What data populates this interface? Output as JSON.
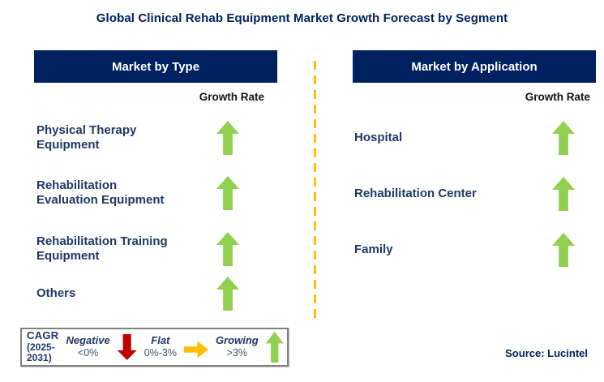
{
  "title": "Global Clinical Rehab Equipment Market Growth Forecast by Segment",
  "source": "Source: Lucintel",
  "colors": {
    "header_navy": "#002060",
    "segment_text": "#1F3864",
    "growing_green": "#92D050",
    "negative_red": "#C00000",
    "flat_amber": "#FFC000",
    "divider_amber": "#FFC000"
  },
  "panels": [
    {
      "header": "Market by Type",
      "growth_rate_label": "Growth Rate",
      "items": [
        {
          "label": "Physical Therapy\nEquipment",
          "trend": "growing",
          "icon": "up-arrow"
        },
        {
          "label": "Rehabilitation\nEvaluation Equipment",
          "trend": "growing",
          "icon": "up-arrow"
        },
        {
          "label": "Rehabilitation Training\nEquipment",
          "trend": "growing",
          "icon": "up-arrow"
        },
        {
          "label": "Others",
          "trend": "growing",
          "icon": "up-arrow"
        }
      ]
    },
    {
      "header": "Market by Application",
      "growth_rate_label": "Growth Rate",
      "items": [
        {
          "label": "Hospital",
          "trend": "growing",
          "icon": "up-arrow"
        },
        {
          "label": "Rehabilitation Center",
          "trend": "growing",
          "icon": "up-arrow"
        },
        {
          "label": "Family",
          "trend": "growing",
          "icon": "up-arrow"
        }
      ]
    }
  ],
  "legend": {
    "metric_label": "CAGR",
    "period_label": "(2025-2031)",
    "entries": [
      {
        "label": "Negative",
        "range": "<0%",
        "icon": "down-arrow",
        "color": "#C00000"
      },
      {
        "label": "Flat",
        "range": "0%-3%",
        "icon": "right-arrow",
        "color": "#FFC000"
      },
      {
        "label": "Growing",
        "range": ">3%",
        "icon": "up-arrow",
        "color": "#92D050"
      }
    ]
  },
  "chart_data": {
    "type": "table",
    "title": "Global Clinical Rehab Equipment Market Growth Forecast by Segment",
    "metric": "Growth Rate (CAGR 2025-2031)",
    "scale": [
      {
        "label": "Negative",
        "range": "<0%"
      },
      {
        "label": "Flat",
        "range": "0%-3%"
      },
      {
        "label": "Growing",
        "range": ">3%"
      }
    ],
    "groups": [
      {
        "name": "Market by Type",
        "rows": [
          {
            "segment": "Physical Therapy Equipment",
            "growth": "Growing (>3%)"
          },
          {
            "segment": "Rehabilitation Evaluation Equipment",
            "growth": "Growing (>3%)"
          },
          {
            "segment": "Rehabilitation Training Equipment",
            "growth": "Growing (>3%)"
          },
          {
            "segment": "Others",
            "growth": "Growing (>3%)"
          }
        ]
      },
      {
        "name": "Market by Application",
        "rows": [
          {
            "segment": "Hospital",
            "growth": "Growing (>3%)"
          },
          {
            "segment": "Rehabilitation Center",
            "growth": "Growing (>3%)"
          },
          {
            "segment": "Family",
            "growth": "Growing (>3%)"
          }
        ]
      }
    ],
    "legend_position": "bottom-left",
    "grid": false
  }
}
